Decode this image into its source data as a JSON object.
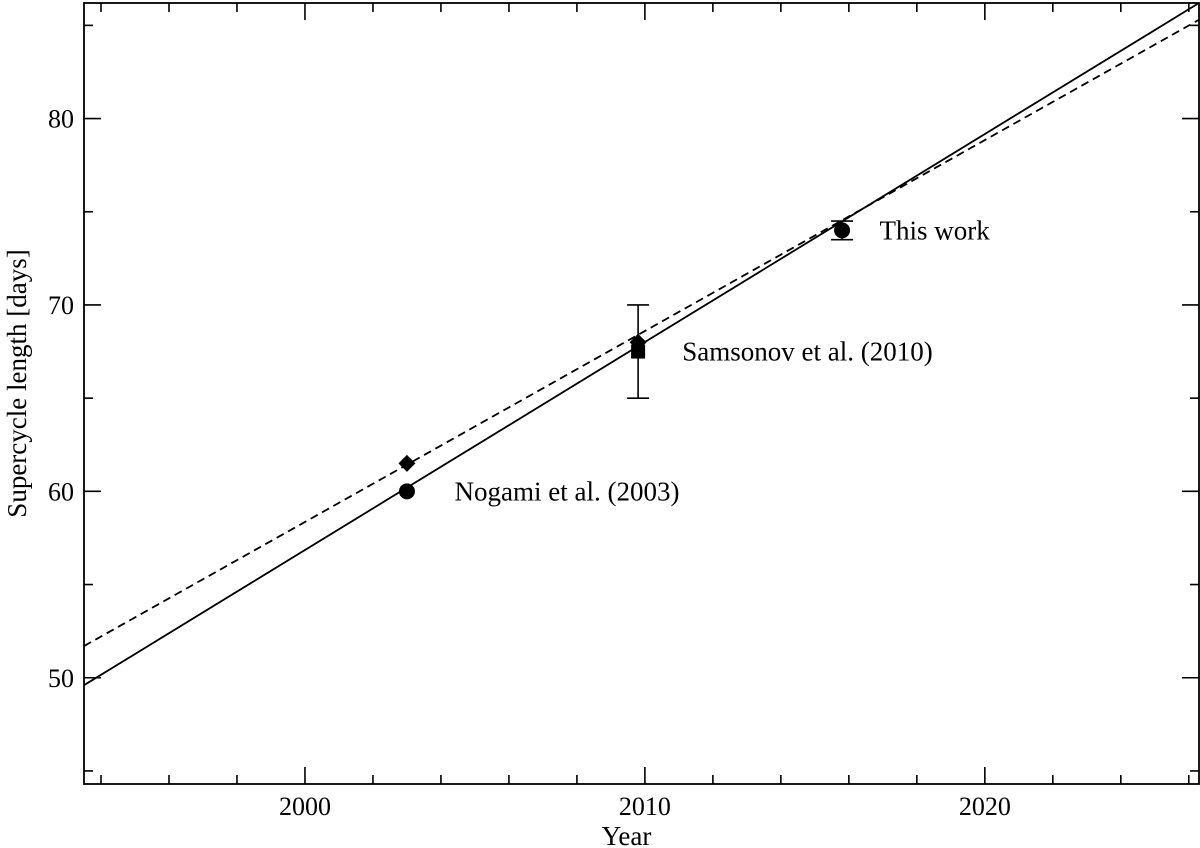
{
  "chart_data": {
    "type": "scatter",
    "title": "",
    "xlabel": "Year",
    "ylabel": "Supercycle length [days]",
    "xlim": [
      1993.5,
      2026.3
    ],
    "ylim": [
      44.3,
      86.2
    ],
    "x_ticks_major": [
      2000,
      2010,
      2020
    ],
    "x_tick_labels": [
      "2000",
      "2010",
      "2020"
    ],
    "x_ticks_minor_step": 2,
    "y_ticks_major": [
      50,
      60,
      70,
      80
    ],
    "y_tick_labels": [
      "50",
      "60",
      "70",
      "80"
    ],
    "y_ticks_minor_step": 5,
    "grid": false,
    "legend": "none",
    "series": [
      {
        "marker": "circle",
        "points": [
          {
            "x": 2003.0,
            "y": 60.0
          },
          {
            "x": 2015.8,
            "y": 74.0,
            "err": 0.5
          }
        ]
      },
      {
        "marker": "diamond",
        "points": [
          {
            "x": 2003.0,
            "y": 61.5
          },
          {
            "x": 2009.8,
            "y": 68.0
          }
        ]
      },
      {
        "marker": "square",
        "points": [
          {
            "x": 2009.8,
            "y": 67.5,
            "err": 2.5
          }
        ]
      }
    ],
    "fit_lines": [
      {
        "style": "solid",
        "x": [
          1993.5,
          2026.3
        ],
        "y": [
          49.6,
          86.2
        ]
      },
      {
        "style": "dashed",
        "x": [
          1993.5,
          2026.3
        ],
        "y": [
          51.7,
          85.3
        ]
      }
    ],
    "annotations": [
      {
        "text": "Nogami et al. (2003)",
        "x": 2004.4,
        "y": 60.0
      },
      {
        "text": "Samsonov et al. (2010)",
        "x": 2011.1,
        "y": 67.5
      },
      {
        "text": "This work",
        "x": 2016.9,
        "y": 74.0
      }
    ]
  }
}
